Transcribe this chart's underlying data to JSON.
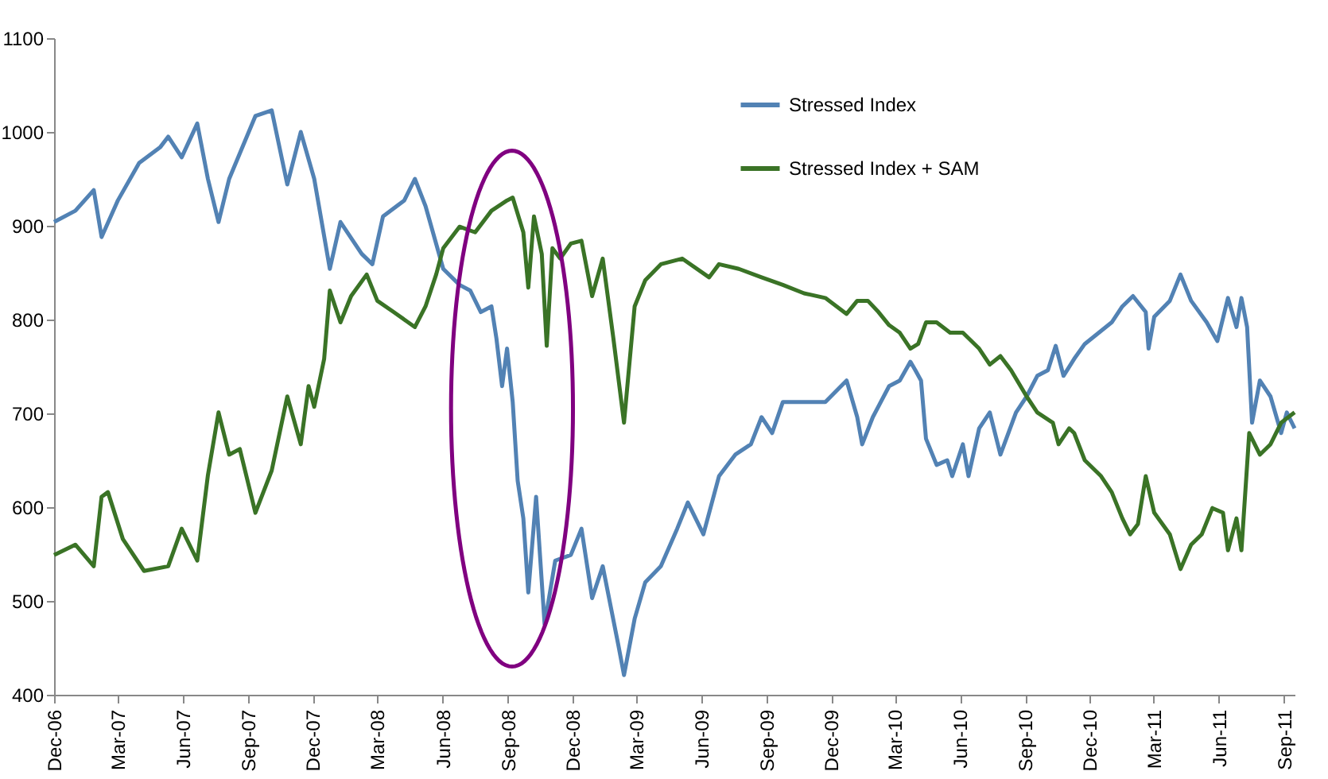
{
  "chart_data": {
    "type": "line",
    "xlim": [
      "2006-12-01",
      "2011-09-16"
    ],
    "xticks": [
      {
        "value": "2006-12-01",
        "label": "Dec-06"
      },
      {
        "value": "2007-03-01",
        "label": "Mar-07"
      },
      {
        "value": "2007-06-01",
        "label": "Jun-07"
      },
      {
        "value": "2007-09-01",
        "label": "Sep-07"
      },
      {
        "value": "2007-12-01",
        "label": "Dec-07"
      },
      {
        "value": "2008-03-01",
        "label": "Mar-08"
      },
      {
        "value": "2008-06-01",
        "label": "Jun-08"
      },
      {
        "value": "2008-09-01",
        "label": "Sep-08"
      },
      {
        "value": "2008-12-01",
        "label": "Dec-08"
      },
      {
        "value": "2009-03-01",
        "label": "Mar-09"
      },
      {
        "value": "2009-06-01",
        "label": "Jun-09"
      },
      {
        "value": "2009-09-01",
        "label": "Sep-09"
      },
      {
        "value": "2009-12-01",
        "label": "Dec-09"
      },
      {
        "value": "2010-03-01",
        "label": "Mar-10"
      },
      {
        "value": "2010-06-01",
        "label": "Jun-10"
      },
      {
        "value": "2010-09-01",
        "label": "Sep-10"
      },
      {
        "value": "2010-12-01",
        "label": "Dec-10"
      },
      {
        "value": "2011-03-01",
        "label": "Mar-11"
      },
      {
        "value": "2011-06-01",
        "label": "Jun-11"
      },
      {
        "value": "2011-09-01",
        "label": "Sep-11"
      }
    ],
    "ylim": [
      400,
      1100
    ],
    "yticks": [
      400,
      500,
      600,
      700,
      800,
      900,
      1000,
      1100
    ],
    "grid": false,
    "legend": "top right",
    "marker": "none",
    "line_style": "solid",
    "series": [
      {
        "name": "Stressed Index",
        "color": "#5282b4",
        "x": [
          "2006-12-01",
          "2006-12-31",
          "2007-01-26",
          "2007-02-06",
          "2007-03-01",
          "2007-03-31",
          "2007-04-30",
          "2007-05-11",
          "2007-05-30",
          "2007-06-21",
          "2007-07-06",
          "2007-07-21",
          "2007-08-05",
          "2007-09-11",
          "2007-10-04",
          "2007-10-26",
          "2007-11-14",
          "2007-12-03",
          "2007-12-25",
          "2008-01-09",
          "2008-02-08",
          "2008-02-23",
          "2008-03-09",
          "2008-04-08",
          "2008-04-23",
          "2008-05-08",
          "2008-06-02",
          "2008-06-25",
          "2008-07-10",
          "2008-07-25",
          "2008-08-09",
          "2008-08-16",
          "2008-08-24",
          "2008-08-31",
          "2008-09-08",
          "2008-09-15",
          "2008-09-23",
          "2008-09-30",
          "2008-10-11",
          "2008-10-23",
          "2008-11-07",
          "2008-11-29",
          "2008-12-14",
          "2008-12-29",
          "2009-01-13",
          "2009-02-04",
          "2009-02-12",
          "2009-02-27",
          "2009-03-14",
          "2009-04-05",
          "2009-04-28",
          "2009-05-13",
          "2009-06-04",
          "2009-06-26",
          "2009-07-19",
          "2009-08-10",
          "2009-08-25",
          "2009-09-09",
          "2009-09-24",
          "2009-10-24",
          "2009-11-23",
          "2009-12-23",
          "2010-01-07",
          "2010-01-14",
          "2010-01-29",
          "2010-02-21",
          "2010-03-08",
          "2010-03-23",
          "2010-03-30",
          "2010-04-07",
          "2010-04-14",
          "2010-04-29",
          "2010-05-14",
          "2010-05-21",
          "2010-06-05",
          "2010-06-13",
          "2010-06-28",
          "2010-07-13",
          "2010-07-28",
          "2010-08-19",
          "2010-09-03",
          "2010-09-18",
          "2010-10-03",
          "2010-10-14",
          "2010-10-25",
          "2010-11-09",
          "2010-11-24",
          "2011-01-01",
          "2011-01-16",
          "2011-01-31",
          "2011-02-18",
          "2011-02-22",
          "2011-03-02",
          "2011-03-24",
          "2011-04-08",
          "2011-04-23",
          "2011-05-15",
          "2011-05-30",
          "2011-06-14",
          "2011-06-26",
          "2011-07-03",
          "2011-07-11",
          "2011-07-18",
          "2011-07-29",
          "2011-08-13",
          "2011-08-28",
          "2011-09-05",
          "2011-09-16"
        ],
        "values": [
          904,
          916,
          938,
          888,
          927,
          967,
          984,
          995,
          973,
          1009,
          950,
          904,
          950,
          1017,
          1023,
          944,
          1000,
          950,
          854,
          904,
          870,
          859,
          910,
          927,
          950,
          921,
          854,
          837,
          831,
          808,
          814,
          780,
          729,
          769,
          712,
          628,
          588,
          509,
          611,
          475,
          543,
          549,
          577,
          503,
          537,
          453,
          421,
          481,
          520,
          537,
          577,
          605,
          571,
          633,
          656,
          667,
          696,
          679,
          712,
          712,
          712,
          735,
          696,
          667,
          696,
          729,
          735,
          755,
          746,
          735,
          673,
          645,
          650,
          633,
          667,
          633,
          684,
          701,
          656,
          701,
          718,
          740,
          746,
          772,
          740,
          758,
          774,
          797,
          814,
          825,
          808,
          769,
          803,
          820,
          848,
          820,
          797,
          777,
          823,
          792,
          823,
          792,
          690,
          735,
          718,
          679,
          701,
          684
        ]
      },
      {
        "name": "Stressed Index + SAM",
        "color": "#3a7326",
        "x": [
          "2006-12-01",
          "2006-12-31",
          "2007-01-26",
          "2007-02-06",
          "2007-02-15",
          "2007-03-08",
          "2007-04-07",
          "2007-05-11",
          "2007-05-30",
          "2007-06-21",
          "2007-07-06",
          "2007-07-21",
          "2007-08-05",
          "2007-08-20",
          "2007-09-11",
          "2007-10-04",
          "2007-10-26",
          "2007-11-14",
          "2007-11-25",
          "2007-12-03",
          "2007-12-17",
          "2007-12-25",
          "2008-01-09",
          "2008-01-24",
          "2008-02-15",
          "2008-03-01",
          "2008-03-24",
          "2008-04-23",
          "2008-05-08",
          "2008-05-23",
          "2008-06-02",
          "2008-06-25",
          "2008-07-17",
          "2008-08-09",
          "2008-08-31",
          "2008-09-08",
          "2008-09-23",
          "2008-09-30",
          "2008-10-08",
          "2008-10-19",
          "2008-10-26",
          "2008-11-03",
          "2008-11-14",
          "2008-11-29",
          "2008-12-14",
          "2008-12-29",
          "2009-01-13",
          "2009-01-28",
          "2009-02-12",
          "2009-02-27",
          "2009-03-14",
          "2009-04-05",
          "2009-05-05",
          "2009-06-12",
          "2009-06-26",
          "2009-07-24",
          "2009-08-25",
          "2009-09-24",
          "2009-10-24",
          "2009-11-23",
          "2009-12-23",
          "2010-01-07",
          "2010-01-22",
          "2010-02-06",
          "2010-02-21",
          "2010-03-08",
          "2010-03-23",
          "2010-04-03",
          "2010-04-14",
          "2010-04-29",
          "2010-05-18",
          "2010-06-05",
          "2010-06-28",
          "2010-07-13",
          "2010-07-28",
          "2010-08-12",
          "2010-09-03",
          "2010-09-18",
          "2010-10-10",
          "2010-10-18",
          "2010-11-02",
          "2010-11-09",
          "2010-11-24",
          "2010-12-17",
          "2011-01-01",
          "2011-01-16",
          "2011-01-27",
          "2011-02-07",
          "2011-02-18",
          "2011-03-02",
          "2011-03-24",
          "2011-04-08",
          "2011-04-23",
          "2011-05-08",
          "2011-05-23",
          "2011-06-07",
          "2011-06-14",
          "2011-06-26",
          "2011-07-03",
          "2011-07-14",
          "2011-07-29",
          "2011-08-13",
          "2011-08-28",
          "2011-09-16"
        ],
        "values": [
          549,
          560,
          537,
          611,
          616,
          566,
          532,
          537,
          577,
          543,
          634,
          701,
          656,
          662,
          594,
          639,
          718,
          667,
          729,
          707,
          758,
          831,
          797,
          825,
          848,
          820,
          808,
          792,
          814,
          848,
          876,
          899,
          893,
          916,
          927,
          930,
          893,
          834,
          910,
          870,
          772,
          876,
          865,
          881,
          884,
          825,
          865,
          780,
          690,
          814,
          842,
          859,
          865,
          845,
          859,
          854,
          845,
          837,
          828,
          823,
          806,
          820,
          820,
          808,
          794,
          786,
          769,
          774,
          797,
          797,
          786,
          786,
          769,
          752,
          761,
          746,
          718,
          701,
          690,
          667,
          684,
          679,
          650,
          633,
          616,
          588,
          571,
          582,
          633,
          594,
          571,
          534,
          560,
          571,
          599,
          594,
          554,
          588,
          554,
          679,
          656,
          667,
          690,
          701
        ]
      }
    ]
  }
}
